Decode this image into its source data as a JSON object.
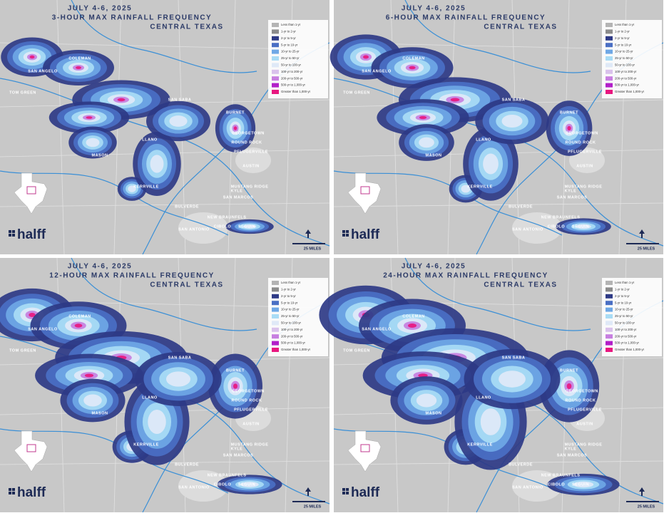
{
  "panels": [
    {
      "title_lines": [
        "JULY 4-6, 2025",
        "3-HOUR MAX RAINFALL FREQUENCY",
        "CENTRAL TEXAS"
      ]
    },
    {
      "title_lines": [
        "JULY 4-6, 2025",
        "6-HOUR MAX RAINFALL FREQUENCY",
        "CENTRAL TEXAS"
      ]
    },
    {
      "title_lines": [
        "JULY 4-6, 2025",
        "12-HOUR MAX RAINFALL FREQUENCY",
        "CENTRAL TEXAS"
      ]
    },
    {
      "title_lines": [
        "JULY 4-6, 2025",
        "24-HOUR MAX RAINFALL FREQUENCY",
        "CENTRAL TEXAS"
      ]
    }
  ],
  "legend": {
    "items": [
      {
        "label": "Less than 1-yr",
        "color": "#b4b4b4"
      },
      {
        "label": "1-yr to 2-yr",
        "color": "#8c8c8c"
      },
      {
        "label": "2-yr to 5-yr",
        "color": "#2e3a86"
      },
      {
        "label": "5-yr to 10-yr",
        "color": "#4a6fc4"
      },
      {
        "label": "10-yr to 25-yr",
        "color": "#6fa8e6"
      },
      {
        "label": "25-yr to 50-yr",
        "color": "#a9dcf5"
      },
      {
        "label": "50-yr to 100-yr",
        "color": "#dfe9f7"
      },
      {
        "label": "100-yr to 200-yr",
        "color": "#d9c2ec"
      },
      {
        "label": "200-yr to 500-yr",
        "color": "#c77fe0"
      },
      {
        "label": "500-yr to 1,000-yr",
        "color": "#b21fc9"
      },
      {
        "label": "Greater than 1,000-yr",
        "color": "#e8177f"
      }
    ]
  },
  "cities": [
    "SAN ANGELO",
    "COLEMAN",
    "TOM GREEN",
    "MASON",
    "LLANO",
    "SAN SABA",
    "BURNET",
    "GEORGETOWN",
    "ROUND ROCK",
    "PFLUGERVILLE",
    "AUSTIN",
    "KERRVILLE",
    "MUSTANG RIDGE",
    "KYLE",
    "SAN MARCOS",
    "BULVERDE",
    "NEW BRAUNFELS",
    "SAN ANTONIO",
    "CIBOLO",
    "SEGUIN"
  ],
  "logo_text": "halff",
  "scale_label": "25 MILES"
}
